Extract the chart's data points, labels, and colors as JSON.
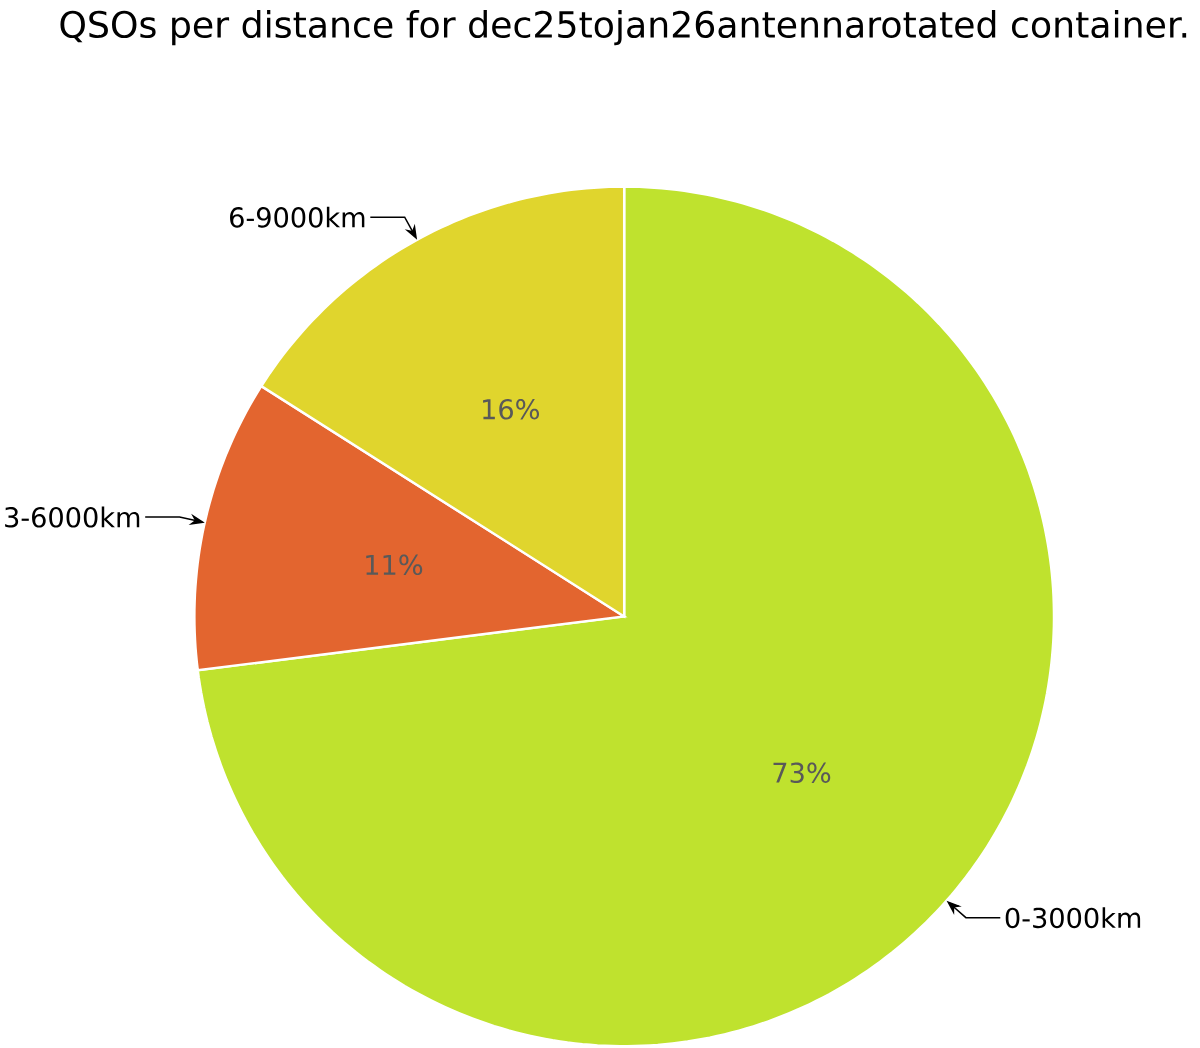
{
  "chart_data": {
    "type": "pie",
    "title": "QSOs per distance for dec25tojan26antennarotated container.",
    "categories": [
      "0-3000km",
      "3-6000km",
      "6-9000km"
    ],
    "values": [
      73,
      11,
      16
    ],
    "colors": [
      "#bfe22e",
      "#e3652f",
      "#e0d52d"
    ],
    "value_labels": [
      "73%",
      "11%",
      "16%"
    ]
  }
}
